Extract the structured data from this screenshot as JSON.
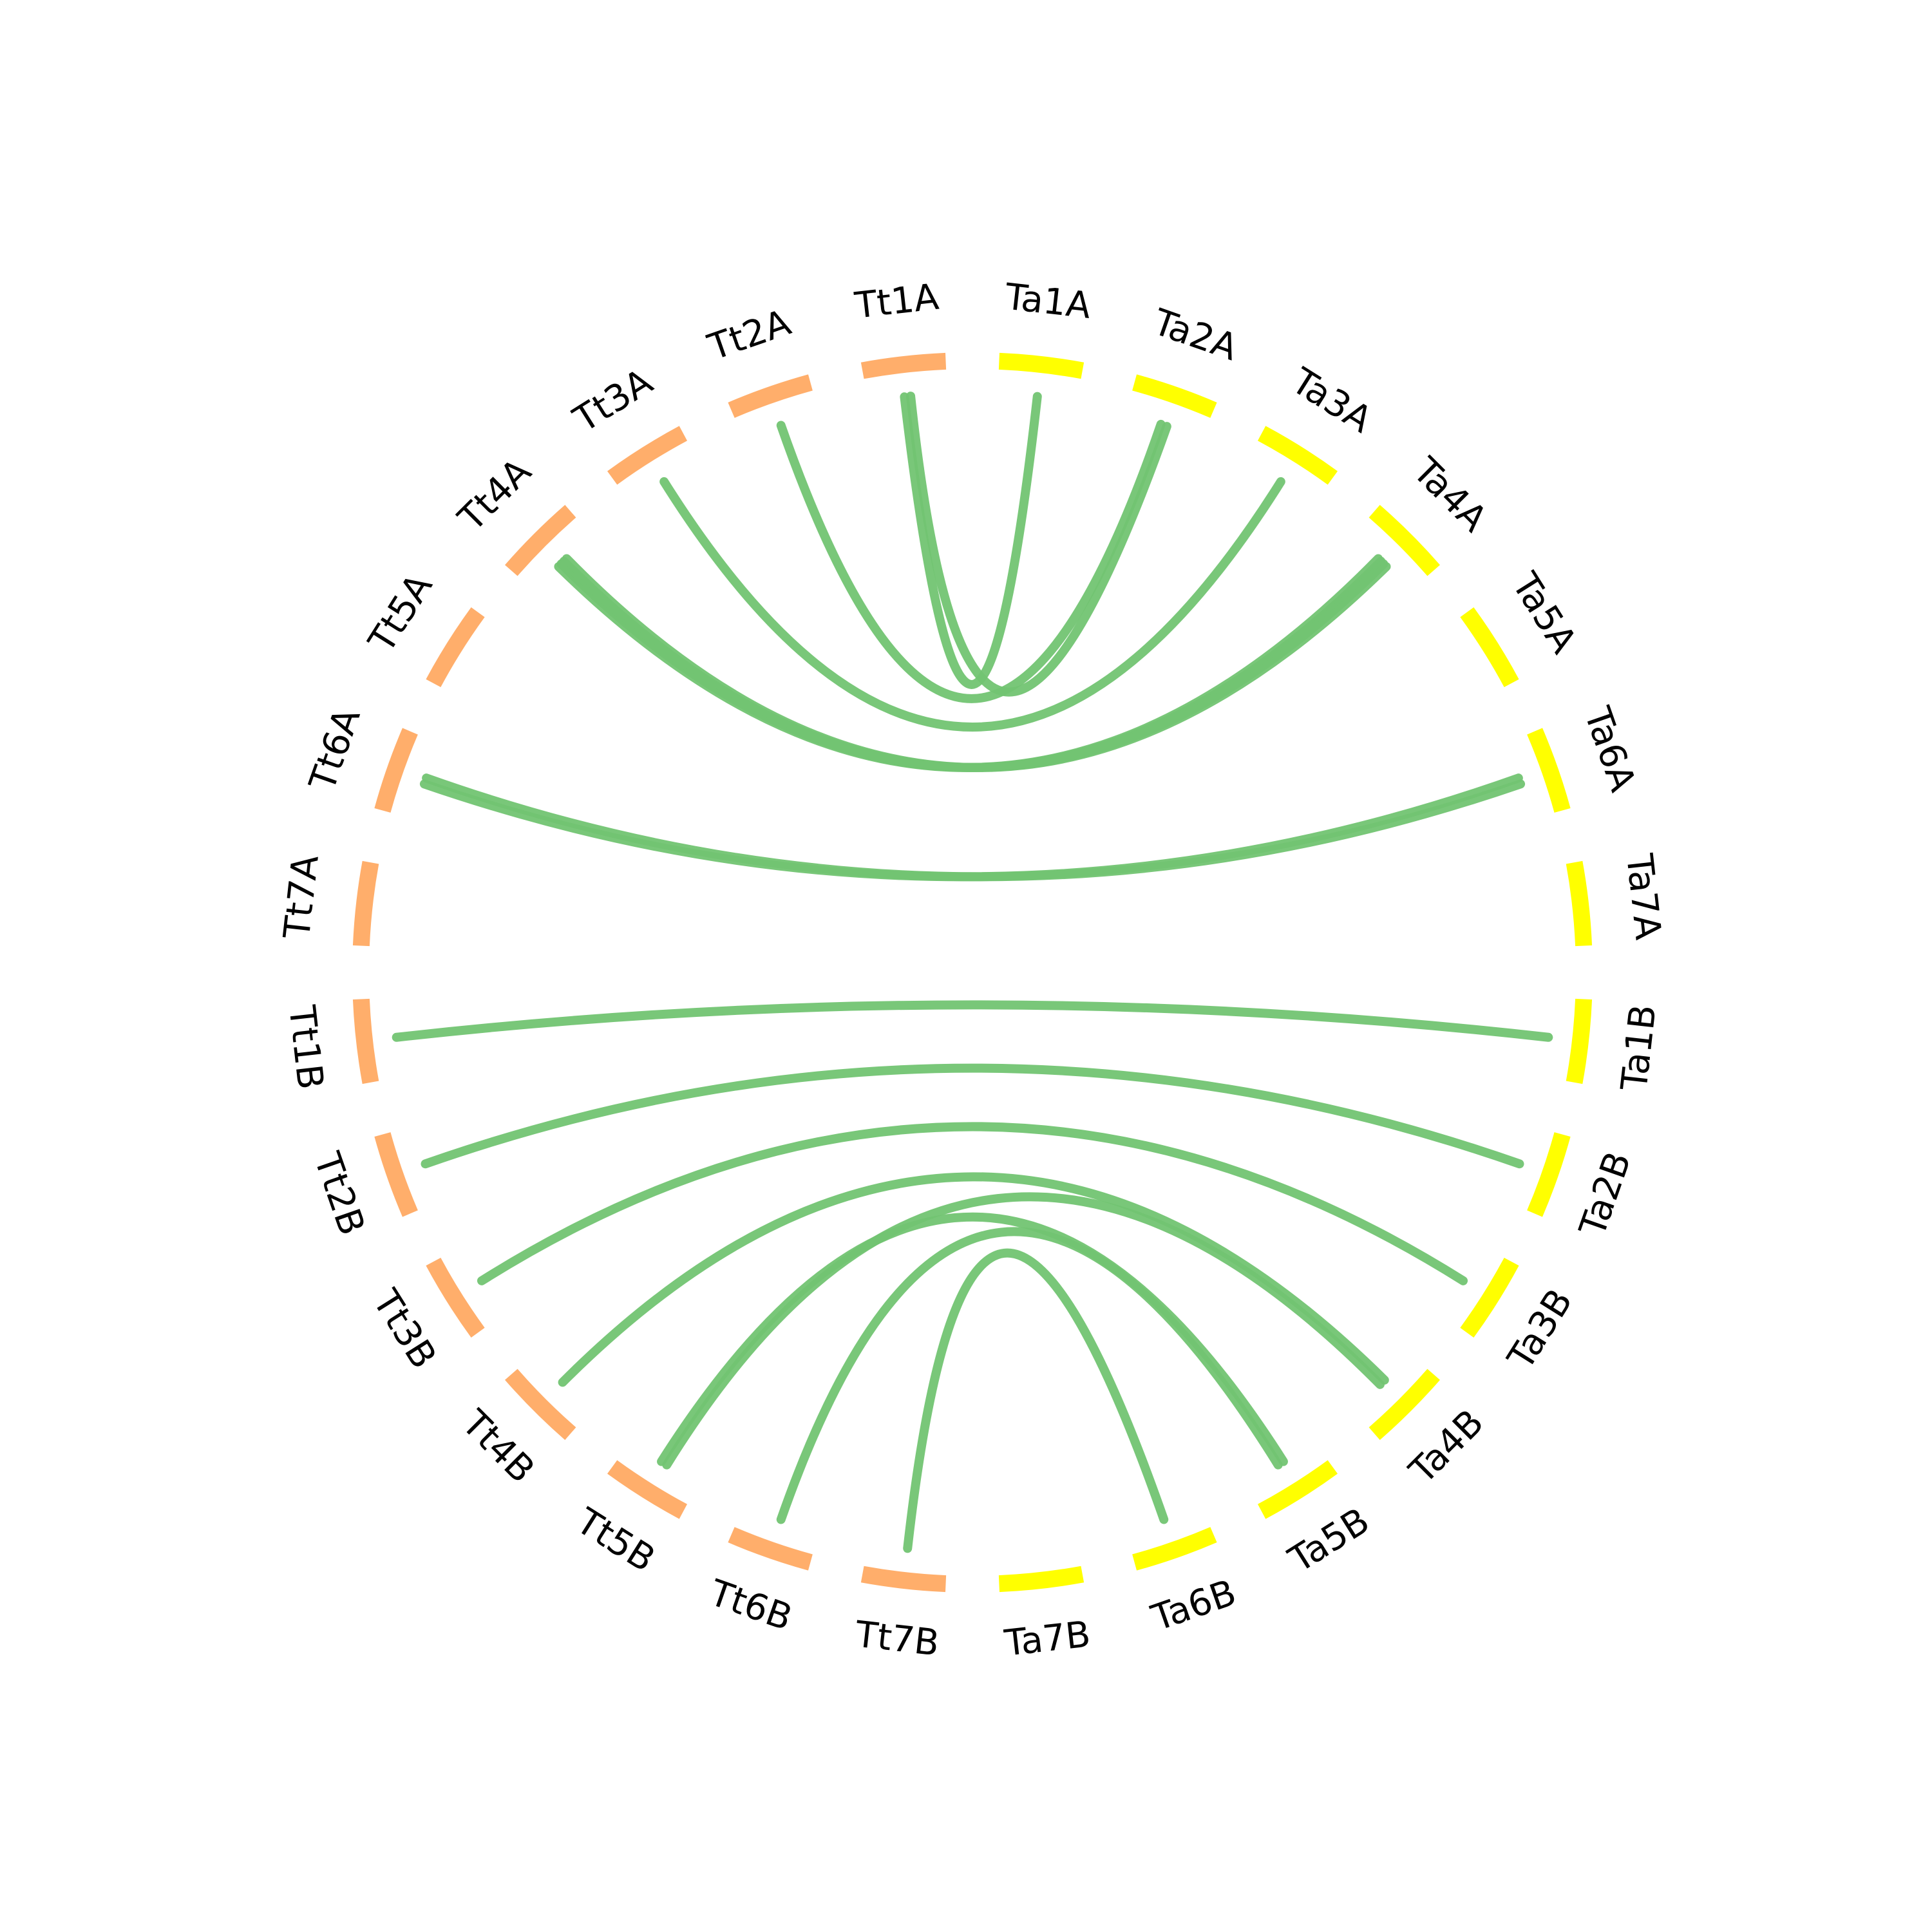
{
  "chart_data": {
    "type": "chord",
    "segments": [
      {
        "label": "Ta1A",
        "group": "Ta"
      },
      {
        "label": "Ta2A",
        "group": "Ta"
      },
      {
        "label": "Ta3A",
        "group": "Ta"
      },
      {
        "label": "Ta4A",
        "group": "Ta"
      },
      {
        "label": "Ta5A",
        "group": "Ta"
      },
      {
        "label": "Ta6A",
        "group": "Ta"
      },
      {
        "label": "Ta7A",
        "group": "Ta"
      },
      {
        "label": "Ta1B",
        "group": "Ta"
      },
      {
        "label": "Ta2B",
        "group": "Ta"
      },
      {
        "label": "Ta3B",
        "group": "Ta"
      },
      {
        "label": "Ta4B",
        "group": "Ta"
      },
      {
        "label": "Ta5B",
        "group": "Ta"
      },
      {
        "label": "Ta6B",
        "group": "Ta"
      },
      {
        "label": "Ta7B",
        "group": "Ta"
      },
      {
        "label": "Tt7B",
        "group": "Tt"
      },
      {
        "label": "Tt6B",
        "group": "Tt"
      },
      {
        "label": "Tt5B",
        "group": "Tt"
      },
      {
        "label": "Tt4B",
        "group": "Tt"
      },
      {
        "label": "Tt3B",
        "group": "Tt"
      },
      {
        "label": "Tt2B",
        "group": "Tt"
      },
      {
        "label": "Tt1B",
        "group": "Tt"
      },
      {
        "label": "Tt7A",
        "group": "Tt"
      },
      {
        "label": "Tt6A",
        "group": "Tt"
      },
      {
        "label": "Tt5A",
        "group": "Tt"
      },
      {
        "label": "Tt4A",
        "group": "Tt"
      },
      {
        "label": "Tt3A",
        "group": "Tt"
      },
      {
        "label": "Tt2A",
        "group": "Tt"
      },
      {
        "label": "Tt1A",
        "group": "Tt"
      }
    ],
    "links": [
      {
        "source": "Ta1A",
        "target": "Tt1A"
      },
      {
        "source": "Ta2A",
        "target": "Tt2A"
      },
      {
        "source": "Ta2A",
        "target": "Tt1A"
      },
      {
        "source": "Ta3A",
        "target": "Tt3A"
      },
      {
        "source": "Ta4A",
        "target": "Tt4A"
      },
      {
        "source": "Ta4A",
        "target": "Tt4A"
      },
      {
        "source": "Ta4A",
        "target": "Tt4A"
      },
      {
        "source": "Ta4A",
        "target": "Tt4A"
      },
      {
        "source": "Ta6A",
        "target": "Tt6A"
      },
      {
        "source": "Ta6A",
        "target": "Tt6A"
      },
      {
        "source": "Ta1B",
        "target": "Tt1B"
      },
      {
        "source": "Ta2B",
        "target": "Tt2B"
      },
      {
        "source": "Ta3B",
        "target": "Tt3B"
      },
      {
        "source": "Ta4B",
        "target": "Tt4B"
      },
      {
        "source": "Ta4B",
        "target": "Tt5B"
      },
      {
        "source": "Ta5B",
        "target": "Tt5B"
      },
      {
        "source": "Ta5B",
        "target": "Tt6B"
      },
      {
        "source": "Ta6B",
        "target": "Tt7B"
      }
    ],
    "colors": {
      "Ta": "#FFFF00",
      "Tt": "#FFAE6B",
      "link": "#72C472"
    }
  }
}
